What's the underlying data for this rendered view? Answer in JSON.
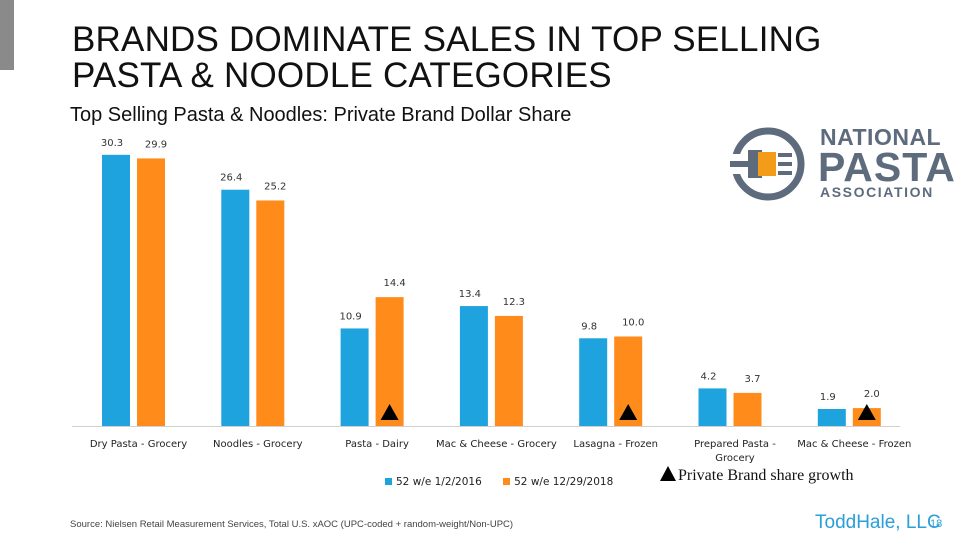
{
  "slide": {
    "title": "BRANDS DOMINATE SALES IN TOP SELLING PASTA & NOODLE CATEGORIES",
    "subtitle": "Top Selling Pasta & Noodles: Private Brand Dollar Share",
    "source": "Source: Nielsen Retail Measurement Services, Total U.S. xAOC (UPC-coded + random-weight/Non-UPC)",
    "brand": "ToddHale, LLC",
    "page_number": "18",
    "growth_legend": "Private Brand share growth"
  },
  "logo": {
    "line1": "NATIONAL",
    "line2": "PASTA",
    "line3": "ASSOCIATION",
    "color": "#5d6b7c"
  },
  "chart_data": {
    "type": "bar",
    "categories": [
      "Dry Pasta - Grocery",
      "Noodles - Grocery",
      "Pasta - Dairy",
      "Mac & Cheese - Grocery",
      "Lasagna - Frozen",
      "Prepared Pasta - Grocery",
      "Mac & Cheese - Frozen"
    ],
    "series": [
      {
        "name": "52 w/e 1/2/2016",
        "color": "#1ea3de",
        "values": [
          30.3,
          26.4,
          10.9,
          13.4,
          9.8,
          4.2,
          1.9
        ],
        "labels": [
          "30.3",
          "26.4",
          "10.9",
          "13.4",
          "9.8",
          "4.2",
          "1.9"
        ]
      },
      {
        "name": "52 w/e 12/29/2018",
        "color": "#ff8c1a",
        "values": [
          29.9,
          25.2,
          14.4,
          12.3,
          10.0,
          3.7,
          2.0
        ],
        "labels": [
          "29.9",
          "25.2",
          "14.4",
          "12.3",
          "10.0",
          "3.7",
          "2.0"
        ]
      }
    ],
    "growth_markers": [
      false,
      false,
      true,
      false,
      true,
      false,
      true
    ],
    "ylim": [
      0,
      32
    ],
    "grid": false,
    "legend_position": "bottom"
  }
}
